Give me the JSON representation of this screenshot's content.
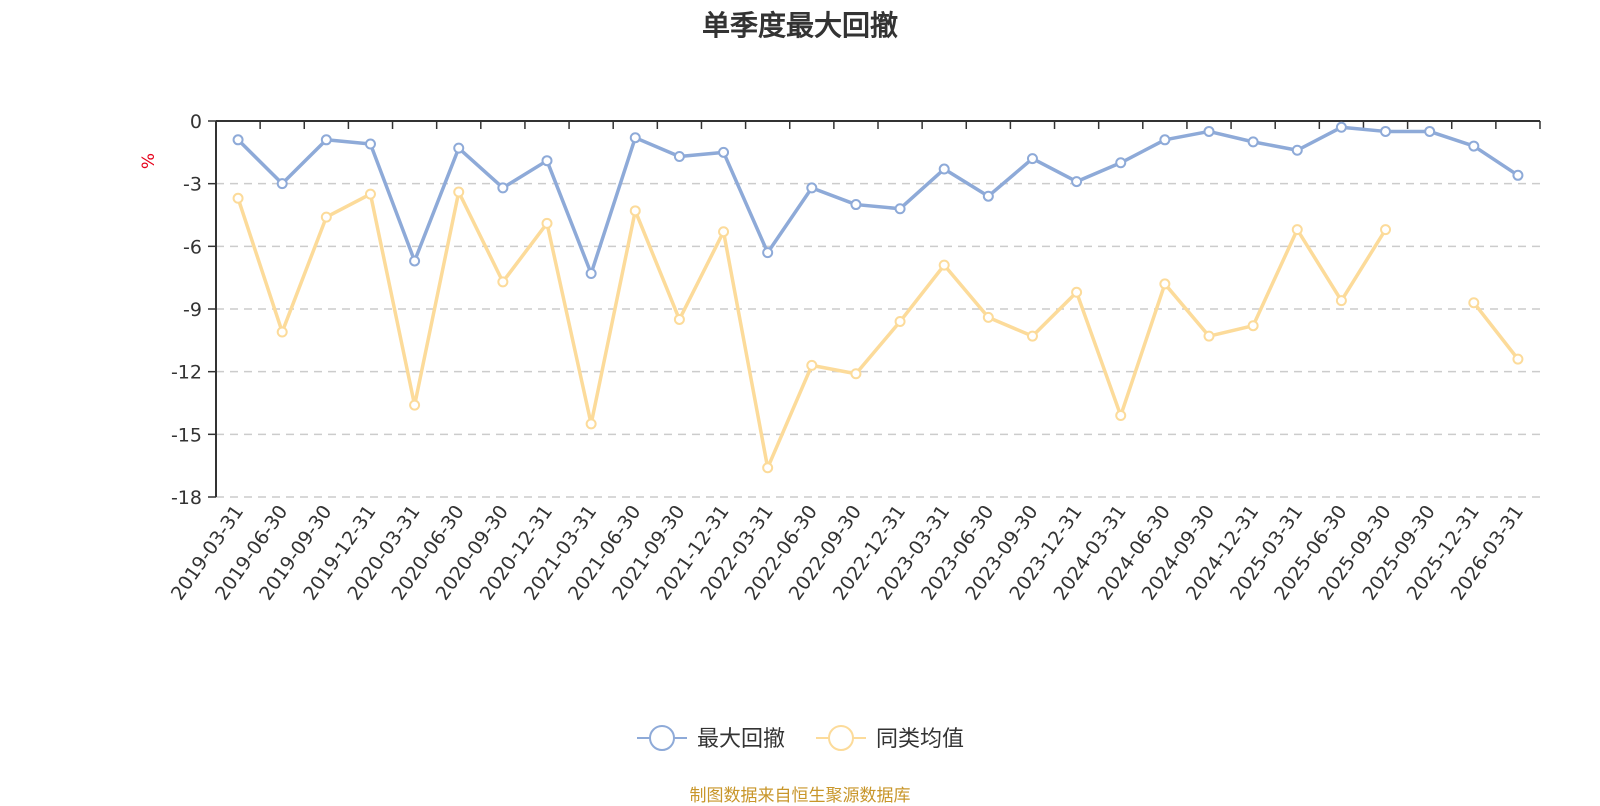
{
  "chart_data": {
    "type": "line",
    "title": "单季度最大回撤",
    "ylabel": "%",
    "ylim": [
      -18,
      0
    ],
    "yticks": [
      0,
      -3,
      -6,
      -9,
      -12,
      -15,
      -18
    ],
    "grid": true,
    "legend_position": "bottom",
    "categories": [
      "2019-03-31",
      "2019-06-30",
      "2019-09-30",
      "2019-12-31",
      "2020-03-31",
      "2020-06-30",
      "2020-09-30",
      "2020-12-31",
      "2021-03-31",
      "2021-06-30",
      "2021-09-30",
      "2021-12-31",
      "2022-03-31",
      "2022-06-30",
      "2022-09-30",
      "2022-12-31",
      "2023-03-31",
      "2023-06-30",
      "2023-09-30",
      "2023-12-31",
      "2024-03-31",
      "2024-06-30",
      "2024-09-30",
      "2024-12-31",
      "2025-03-31",
      "2025-06-30",
      "2025-09-30",
      "2025-09-30",
      "2025-12-31",
      "2026-03-31"
    ],
    "series": [
      {
        "name": "最大回撤",
        "color": "#8eaad8",
        "values": [
          -0.9,
          -3.0,
          -0.9,
          -1.1,
          -6.7,
          -1.3,
          -3.2,
          -1.9,
          -7.3,
          -0.8,
          -1.7,
          -1.5,
          -6.3,
          -3.2,
          -4.0,
          -4.2,
          -2.3,
          -3.6,
          -1.8,
          -2.9,
          -2.0,
          -0.9,
          -0.5,
          -1.0,
          -1.4,
          -0.3,
          -0.5,
          -0.5,
          -1.2,
          -2.6
        ]
      },
      {
        "name": "同类均值",
        "color": "#fcdb9a",
        "values": [
          -3.7,
          -10.1,
          -4.6,
          -3.5,
          -13.6,
          -3.4,
          -7.7,
          -4.9,
          -14.5,
          -4.3,
          -9.5,
          -5.3,
          -16.6,
          -11.7,
          -12.1,
          -9.6,
          -6.9,
          -9.4,
          -10.3,
          -8.2,
          -14.1,
          -7.8,
          -10.3,
          -9.8,
          -5.2,
          -8.6,
          -5.2,
          null,
          -8.7,
          -11.4
        ]
      }
    ]
  },
  "source_note": "制图数据来自恒生聚源数据库",
  "colors": {
    "title": "#333333",
    "axis": "#333333",
    "grid": "#cccccc",
    "ylabel": "#e6001a",
    "source": "#c8962a"
  }
}
